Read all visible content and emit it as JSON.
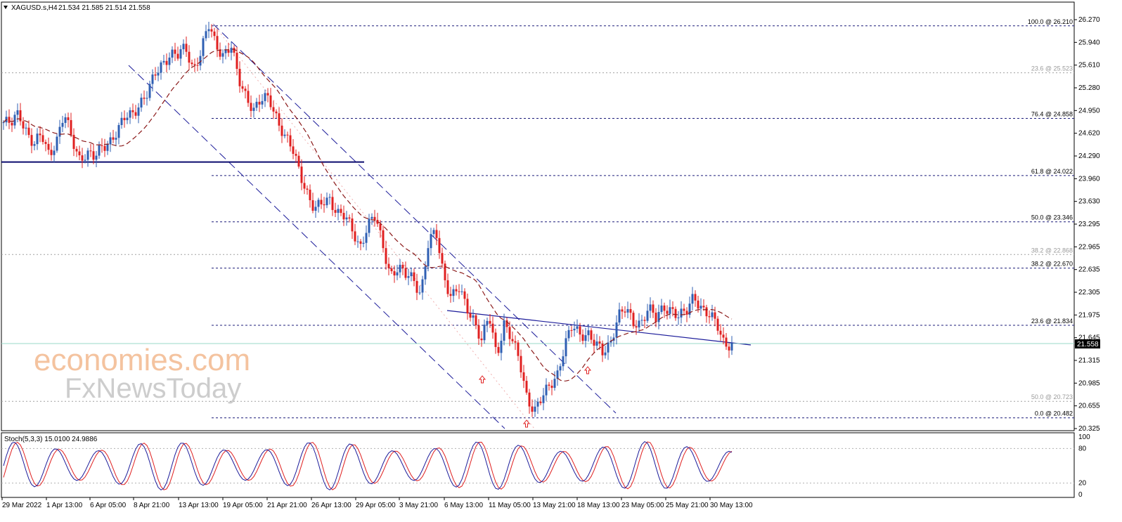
{
  "header": {
    "symbol": "XAGUSD.s,H4",
    "ohlc": "21.534 21.585 21.514 21.558"
  },
  "stoch_label": "Stoch(5,3,3) 15.0100 24.9886",
  "current_price": "21.558",
  "watermark": {
    "line1": "economies.com",
    "line2": "FxNewsToday"
  },
  "colors": {
    "bull": "#2f5fb3",
    "bear": "#e02020",
    "ma": "#8b1a1a",
    "fib_line": "#1c1c7a",
    "fib_dim": "#a0a0a0",
    "channel": "#1c1c9a",
    "support": "#0a0a6e",
    "stoch_k": "#1c1c9a",
    "stoch_d": "#e02020"
  },
  "chart_data": {
    "type": "candlestick",
    "title": "XAGUSD.s,H4",
    "ylim": [
      20.325,
      26.3
    ],
    "y_ticks": [
      "26.270",
      "25.940",
      "25.610",
      "25.280",
      "24.950",
      "24.620",
      "24.290",
      "23.960",
      "23.630",
      "23.295",
      "22.965",
      "22.635",
      "22.305",
      "21.975",
      "21.645",
      "21.315",
      "20.985",
      "20.655",
      "20.325"
    ],
    "x_ticks": [
      "29 Mar 2022",
      "1 Apr 13:00",
      "6 Apr 05:00",
      "8 Apr 21:00",
      "13 Apr 13:00",
      "19 Apr 05:00",
      "21 Apr 21:00",
      "26 Apr 13:00",
      "29 Apr 05:00",
      "3 May 21:00",
      "6 May 13:00",
      "11 May 05:00",
      "13 May 21:00",
      "18 May 13:00",
      "23 May 05:00",
      "25 May 21:00",
      "30 May 13:00"
    ],
    "fib_levels": [
      {
        "label": "100.0 @ 26.210",
        "value": 26.21,
        "dim": false
      },
      {
        "label": "23.6 @ 25.523",
        "value": 25.523,
        "dim": true
      },
      {
        "label": "76.4 @ 24.858",
        "value": 24.858,
        "dim": false
      },
      {
        "label": "61.8 @ 24.022",
        "value": 24.022,
        "dim": false
      },
      {
        "label": "50.0 @ 23.346",
        "value": 23.346,
        "dim": false
      },
      {
        "label": "38.2 @ 22.868",
        "value": 22.868,
        "dim": true
      },
      {
        "label": "38.2 @ 22.670",
        "value": 22.67,
        "dim": false
      },
      {
        "label": "23.6 @ 21.834",
        "value": 21.834,
        "dim": false
      },
      {
        "label": "50.0 @ 20.723",
        "value": 20.723,
        "dim": true
      },
      {
        "label": "0.0 @ 20.482",
        "value": 20.482,
        "dim": false
      }
    ],
    "support_level": 24.22,
    "close_path": [
      24.8,
      24.75,
      24.95,
      24.7,
      24.45,
      24.6,
      24.35,
      24.55,
      24.9,
      24.55,
      24.3,
      24.35,
      24.25,
      24.45,
      24.55,
      24.65,
      24.85,
      24.95,
      25.1,
      25.2,
      25.5,
      25.7,
      25.8,
      25.75,
      25.9,
      25.6,
      25.8,
      26.2,
      25.95,
      25.8,
      25.9,
      25.4,
      25.2,
      25.0,
      25.1,
      25.15,
      24.9,
      24.6,
      24.4,
      24.1,
      23.8,
      23.5,
      23.6,
      23.7,
      23.5,
      23.4,
      23.2,
      23.0,
      23.3,
      23.4,
      23.0,
      22.6,
      22.65,
      22.55,
      22.55,
      22.3,
      23.0,
      23.2,
      22.6,
      22.25,
      22.35,
      22.1,
      21.95,
      21.6,
      21.95,
      21.4,
      21.9,
      21.6,
      21.3,
      20.8,
      20.6,
      20.75,
      20.95,
      21.15,
      21.55,
      21.8,
      21.7,
      21.75,
      21.55,
      21.4,
      21.6,
      22.0,
      22.05,
      21.85,
      21.9,
      22.1,
      21.9,
      22.1,
      22.1,
      21.95,
      22.0,
      22.3,
      22.1,
      21.95,
      21.85,
      21.6,
      21.55
    ],
    "stoch_ylim": [
      0,
      100
    ],
    "stoch_levels": [
      20,
      80
    ],
    "stoch_ticks": [
      "100",
      "80",
      "20",
      "0"
    ]
  }
}
